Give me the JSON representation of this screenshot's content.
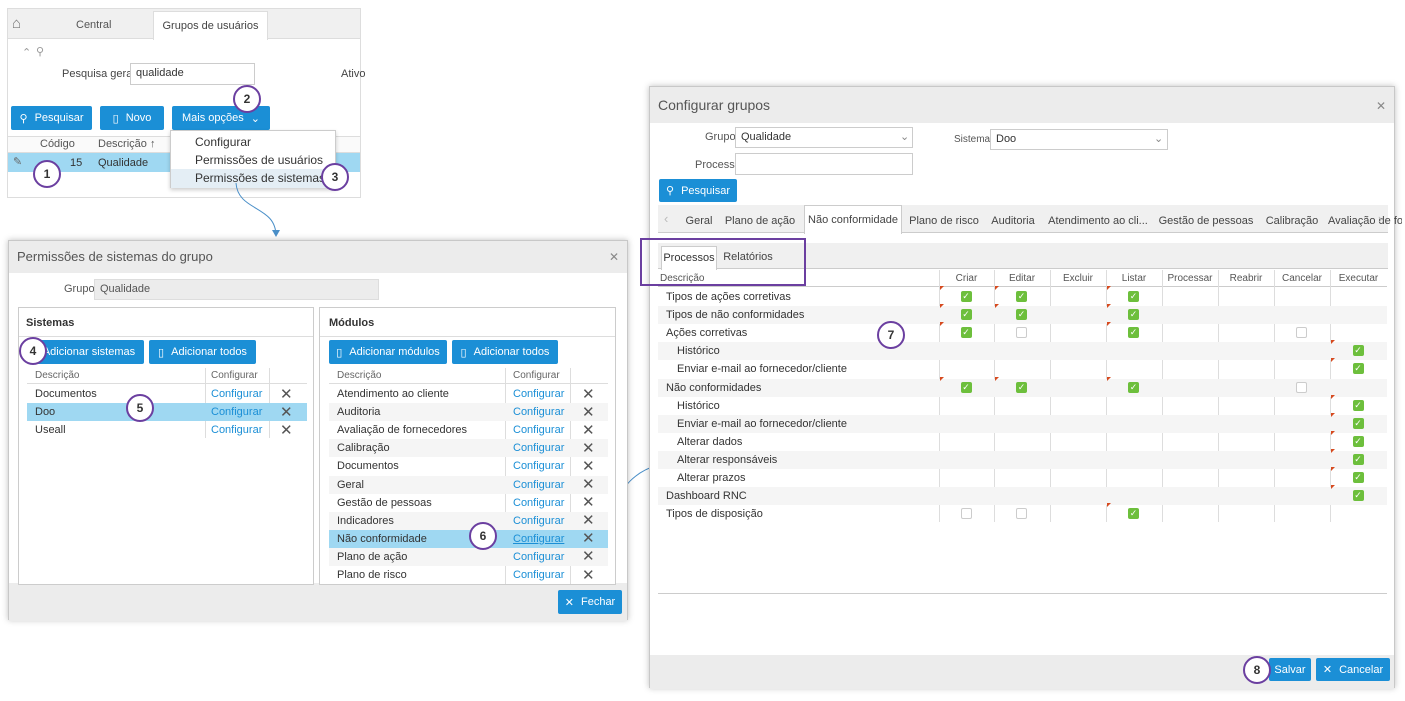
{
  "top": {
    "tabs": [
      "Central",
      "Grupos de usuários"
    ],
    "search_label": "Pesquisa geral",
    "search_value": "qualidade",
    "ativo_label": "Ativo",
    "btn_search": "Pesquisar",
    "btn_new": "Novo",
    "btn_more": "Mais opções",
    "col_code": "Código",
    "col_desc": "Descrição ↑",
    "row_code": "15",
    "row_desc": "Qualidade",
    "menu": [
      "Configurar",
      "Permissões de usuários",
      "Permissões de sistemas"
    ]
  },
  "perm": {
    "title": "Permissões de sistemas do grupo",
    "group_label": "Grupo",
    "group_value": "Qualidade",
    "sys_title": "Sistemas",
    "add_sys": "Adicionar sistemas",
    "add_all": "Adicionar todos",
    "col_desc": "Descrição",
    "col_conf": "Configurar",
    "systems": [
      "Documentos",
      "Doo",
      "Useall"
    ],
    "mod_title": "Módulos",
    "add_mod": "Adicionar módulos",
    "modules": [
      "Atendimento ao cliente",
      "Auditoria",
      "Avaliação de fornecedores",
      "Calibração",
      "Documentos",
      "Geral",
      "Gestão de pessoas",
      "Indicadores",
      "Não conformidade",
      "Plano de ação",
      "Plano de risco"
    ],
    "conf_link": "Configurar",
    "close": "Fechar"
  },
  "cfg": {
    "title": "Configurar grupos",
    "group_label": "Grupo",
    "group_value": "Qualidade",
    "sys_label": "Sistema",
    "sys_value": "Doo",
    "proc_label": "Processo",
    "search": "Pesquisar",
    "tabs": [
      "Geral",
      "Plano de ação",
      "Não conformidade",
      "Plano de risco",
      "Auditoria",
      "Atendimento ao cli...",
      "Gestão de pessoas",
      "Calibração",
      "Avaliação de fo"
    ],
    "subtabs": [
      "Processos",
      "Relatórios"
    ],
    "cols": [
      "Descrição",
      "Criar",
      "Editar",
      "Excluir",
      "Listar",
      "Processar",
      "Reabrir",
      "Cancelar",
      "Executar"
    ],
    "rows": [
      "Tipos de ações corretivas",
      "Tipos de não conformidades",
      "Ações corretivas",
      "Histórico",
      "Enviar e-mail ao fornecedor/cliente",
      "Não conformidades",
      "Histórico",
      "Enviar e-mail ao fornecedor/cliente",
      "Alterar dados",
      "Alterar responsáveis",
      "Alterar prazos",
      "Dashboard RNC",
      "Tipos de disposição"
    ],
    "save": "Salvar",
    "cancel": "Cancelar"
  },
  "annotations": [
    "1",
    "2",
    "3",
    "4",
    "5",
    "6",
    "7",
    "8"
  ]
}
